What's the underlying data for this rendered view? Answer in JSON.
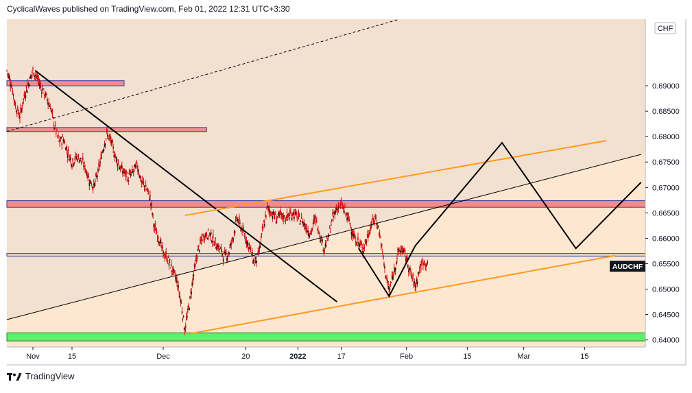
{
  "header": {
    "text": "CyclicalWaves published on TradingView.com, Feb 01, 2022 12:31 UTC+3:30"
  },
  "footer": {
    "brand": "TradingView",
    "logo_icon": "tradingview-logo-icon"
  },
  "colors": {
    "background_upper": "#f2e0d0",
    "background_lower": "#fde7d0",
    "candle_color": "#d11212",
    "zone_red": "#f08c8a",
    "zone_green": "#5ef06a",
    "orange_line": "#ff9a1f",
    "black_line": "#000000",
    "axis_text": "#131722"
  },
  "chart_data": {
    "type": "candlestick",
    "symbol": "AUDCHF",
    "currency": "CHF",
    "last_price_label": "AUDCHF",
    "ylim": [
      0.6386,
      0.7031
    ],
    "y_ticks": [
      0.64,
      0.645,
      0.65,
      0.655,
      0.66,
      0.665,
      0.67,
      0.675,
      0.68,
      0.685,
      0.69
    ],
    "y_tick_labels": [
      "0.64000",
      "0.64500",
      "0.65000",
      "0.65500",
      "0.66000",
      "0.66500",
      "0.67000",
      "0.67500",
      "0.68000",
      "0.68500",
      "0.69000"
    ],
    "x_tick_labels": [
      {
        "label": "Nov",
        "day": 6
      },
      {
        "label": "15",
        "day": 15
      },
      {
        "label": "Dec",
        "day": 36
      },
      {
        "label": "20",
        "day": 55
      },
      {
        "label": "2022",
        "day": 67
      },
      {
        "label": "17",
        "day": 77
      },
      {
        "label": "Feb",
        "day": 92
      },
      {
        "label": "15",
        "day": 106
      },
      {
        "label": "Mar",
        "day": 119
      },
      {
        "label": "15",
        "day": 133
      }
    ],
    "day_range": [
      0,
      147
    ],
    "price_series": [
      [
        0,
        0.693
      ],
      [
        1,
        0.6905
      ],
      [
        2,
        0.686
      ],
      [
        3,
        0.684
      ],
      [
        4,
        0.688
      ],
      [
        5,
        0.6905
      ],
      [
        6,
        0.693
      ],
      [
        7,
        0.6915
      ],
      [
        8,
        0.6895
      ],
      [
        9,
        0.688
      ],
      [
        10,
        0.686
      ],
      [
        11,
        0.682
      ],
      [
        12,
        0.679
      ],
      [
        13,
        0.6795
      ],
      [
        14,
        0.677
      ],
      [
        15,
        0.675
      ],
      [
        16,
        0.676
      ],
      [
        17,
        0.6755
      ],
      [
        18,
        0.674
      ],
      [
        19,
        0.6715
      ],
      [
        20,
        0.67
      ],
      [
        21,
        0.673
      ],
      [
        22,
        0.677
      ],
      [
        23,
        0.6805
      ],
      [
        24,
        0.679
      ],
      [
        25,
        0.676
      ],
      [
        26,
        0.674
      ],
      [
        27,
        0.673
      ],
      [
        28,
        0.672
      ],
      [
        29,
        0.673
      ],
      [
        30,
        0.6745
      ],
      [
        31,
        0.671
      ],
      [
        32,
        0.67
      ],
      [
        33,
        0.668
      ],
      [
        34,
        0.662
      ],
      [
        35,
        0.66
      ],
      [
        36,
        0.657
      ],
      [
        37,
        0.656
      ],
      [
        38,
        0.654
      ],
      [
        39,
        0.652
      ],
      [
        40,
        0.648
      ],
      [
        41,
        0.642
      ],
      [
        42,
        0.647
      ],
      [
        43,
        0.653
      ],
      [
        44,
        0.6575
      ],
      [
        45,
        0.66
      ],
      [
        46,
        0.661
      ],
      [
        47,
        0.6605
      ],
      [
        48,
        0.659
      ],
      [
        49,
        0.658
      ],
      [
        50,
        0.6565
      ],
      [
        51,
        0.657
      ],
      [
        52,
        0.66
      ],
      [
        53,
        0.664
      ],
      [
        54,
        0.662
      ],
      [
        55,
        0.66
      ],
      [
        56,
        0.658
      ],
      [
        57,
        0.655
      ],
      [
        58,
        0.657
      ],
      [
        59,
        0.662
      ],
      [
        60,
        0.666
      ],
      [
        61,
        0.665
      ],
      [
        62,
        0.664
      ],
      [
        63,
        0.6645
      ],
      [
        64,
        0.664
      ],
      [
        65,
        0.6645
      ],
      [
        66,
        0.665
      ],
      [
        67,
        0.664
      ],
      [
        68,
        0.6635
      ],
      [
        69,
        0.662
      ],
      [
        70,
        0.661
      ],
      [
        71,
        0.664
      ],
      [
        72,
        0.661
      ],
      [
        73,
        0.658
      ],
      [
        74,
        0.66
      ],
      [
        75,
        0.664
      ],
      [
        76,
        0.666
      ],
      [
        77,
        0.6665
      ],
      [
        78,
        0.665
      ],
      [
        79,
        0.663
      ],
      [
        80,
        0.66
      ],
      [
        81,
        0.659
      ],
      [
        82,
        0.658
      ],
      [
        83,
        0.66
      ],
      [
        84,
        0.663
      ],
      [
        85,
        0.664
      ],
      [
        86,
        0.66
      ],
      [
        87,
        0.654
      ],
      [
        88,
        0.6495
      ],
      [
        89,
        0.653
      ],
      [
        90,
        0.657
      ],
      [
        91,
        0.658
      ],
      [
        92,
        0.656
      ],
      [
        93,
        0.653
      ],
      [
        94,
        0.6505
      ],
      [
        95,
        0.654
      ],
      [
        96,
        0.6555
      ],
      [
        97,
        0.6545
      ]
    ],
    "zones": [
      {
        "name": "",
        "color": "#f08c8a",
        "y_low": 0.69,
        "y_high": 0.691,
        "x_start": 0,
        "x_end": 27
      },
      {
        "name": "",
        "color": "#f08c8a",
        "y_low": 0.681,
        "y_high": 0.6818,
        "x_start": 0,
        "x_end": 46
      },
      {
        "name": "",
        "color": "#f08c8a",
        "y_low": 0.6661,
        "y_high": 0.6674,
        "x_start": 0,
        "x_end": 147
      },
      {
        "name": "",
        "color": "#f4d8c8",
        "y_low": 0.6565,
        "y_high": 0.657,
        "x_start": 0,
        "x_end": 147
      },
      {
        "name": "",
        "color": "#5ef06a",
        "y_low": 0.6398,
        "y_high": 0.6414,
        "x_start": 0,
        "x_end": 147
      }
    ],
    "trendlines": [
      {
        "color": "#000000",
        "style": "solid",
        "width": 2,
        "points": [
          [
            6.5,
            0.693
          ],
          [
            76,
            0.6475
          ]
        ]
      },
      {
        "color": "#000000",
        "style": "dashed",
        "width": 1,
        "points": [
          [
            0,
            0.681
          ],
          [
            90,
            0.703
          ]
        ]
      },
      {
        "color": "#000000",
        "style": "solid",
        "width": 1,
        "points": [
          [
            0,
            0.644
          ],
          [
            146,
            0.6765
          ]
        ]
      },
      {
        "color": "#ff9a1f",
        "style": "solid",
        "width": 2,
        "points": [
          [
            41,
            0.6645
          ],
          [
            138,
            0.6792
          ]
        ]
      },
      {
        "color": "#ff9a1f",
        "style": "solid",
        "width": 2,
        "points": [
          [
            42,
            0.6412
          ],
          [
            140,
            0.6566
          ]
        ]
      },
      {
        "color": "#000000",
        "style": "solid",
        "width": 2,
        "points": [
          [
            81,
            0.658
          ],
          [
            88,
            0.6486
          ],
          [
            94,
            0.6585
          ]
        ]
      },
      {
        "color": "#000000",
        "style": "solid",
        "width": 2,
        "points": [
          [
            94,
            0.6585
          ],
          [
            114,
            0.6788
          ],
          [
            131,
            0.658
          ],
          [
            146,
            0.671
          ]
        ]
      }
    ]
  }
}
